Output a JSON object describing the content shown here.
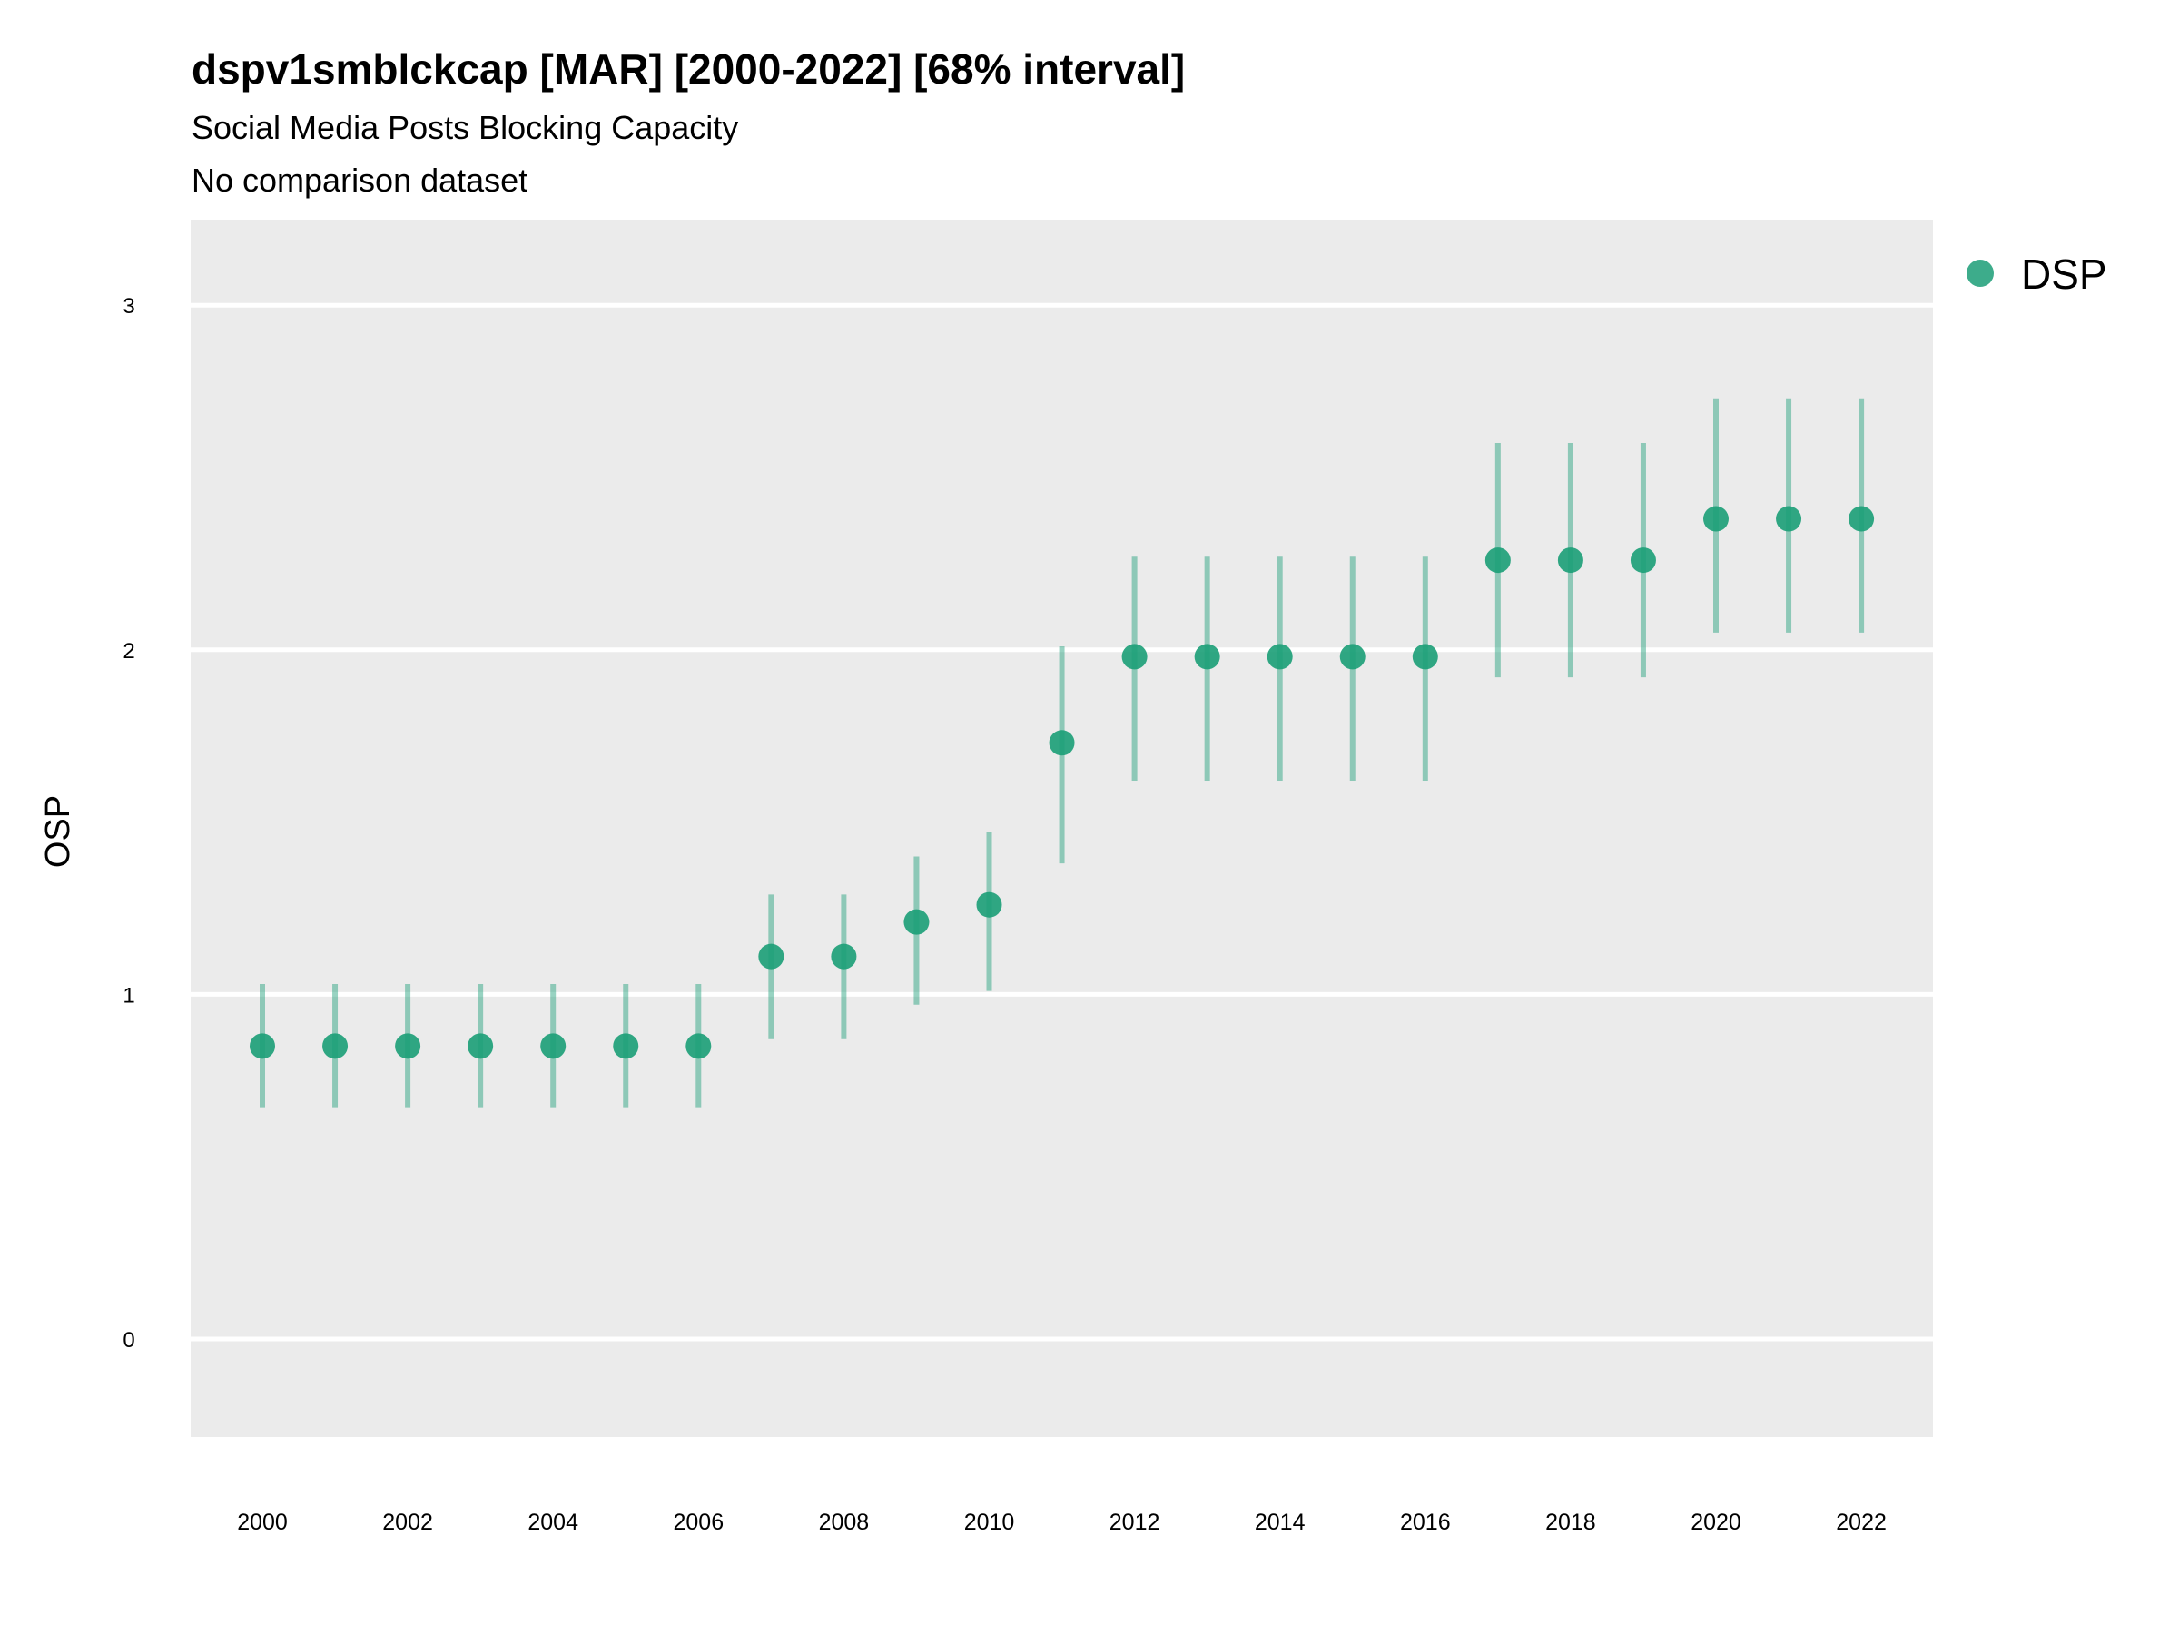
{
  "chart_data": {
    "type": "scatter",
    "title": "dspv1smblckcap [MAR] [2000-2022] [68% interval]",
    "subtitle": "Social Media Posts Blocking Capacity",
    "subtitle2": "No comparison dataset",
    "xlabel": "",
    "ylabel": "OSP",
    "xlim": [
      1999,
      2023
    ],
    "ylim": [
      -0.25,
      3.25
    ],
    "grid": true,
    "legend_position": "right",
    "x_ticks": [
      "2000",
      "2002",
      "2004",
      "2006",
      "2008",
      "2010",
      "2012",
      "2014",
      "2016",
      "2018",
      "2020",
      "2022"
    ],
    "y_ticks": [
      "0",
      "1",
      "2",
      "3"
    ],
    "series": [
      {
        "name": "DSP",
        "color": "#1b9e77",
        "x": [
          2000,
          2001,
          2002,
          2003,
          2004,
          2005,
          2006,
          2007,
          2008,
          2009,
          2010,
          2011,
          2012,
          2013,
          2014,
          2015,
          2016,
          2017,
          2018,
          2019,
          2020,
          2021,
          2022
        ],
        "values": [
          0.85,
          0.85,
          0.85,
          0.85,
          0.85,
          0.85,
          0.85,
          1.11,
          1.11,
          1.21,
          1.26,
          1.73,
          1.98,
          1.98,
          1.98,
          1.98,
          1.98,
          2.26,
          2.26,
          2.26,
          2.38,
          2.38,
          2.38
        ],
        "lower": [
          0.67,
          0.67,
          0.67,
          0.67,
          0.67,
          0.67,
          0.67,
          0.87,
          0.87,
          0.97,
          1.01,
          1.38,
          1.62,
          1.62,
          1.62,
          1.62,
          1.62,
          1.92,
          1.92,
          1.92,
          2.05,
          2.05,
          2.05
        ],
        "upper": [
          1.03,
          1.03,
          1.03,
          1.03,
          1.03,
          1.03,
          1.03,
          1.29,
          1.29,
          1.4,
          1.47,
          2.01,
          2.27,
          2.27,
          2.27,
          2.27,
          2.27,
          2.6,
          2.6,
          2.6,
          2.73,
          2.73,
          2.73
        ]
      }
    ]
  }
}
